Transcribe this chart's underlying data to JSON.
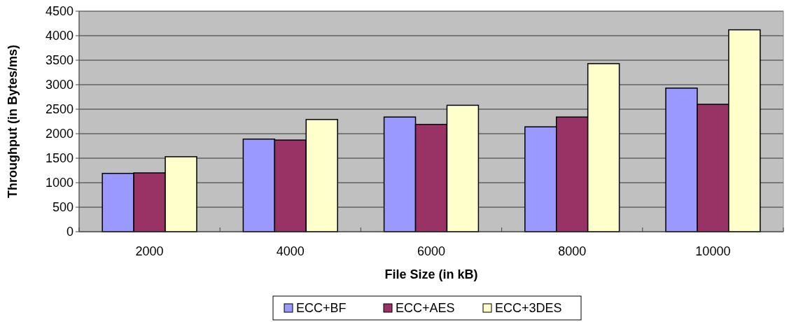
{
  "chart_data": {
    "type": "bar",
    "xlabel": "File Size (in kB)",
    "ylabel": "Throughput (in Bytes/ms)",
    "categories": [
      "2000",
      "4000",
      "6000",
      "8000",
      "10000"
    ],
    "series": [
      {
        "name": "ECC+BF",
        "color": "#9999ff",
        "values": [
          1190,
          1890,
          2340,
          2140,
          2930
        ]
      },
      {
        "name": "ECC+AES",
        "color": "#993366",
        "values": [
          1200,
          1870,
          2190,
          2340,
          2600
        ]
      },
      {
        "name": "ECC+3DES",
        "color": "#ffffcc",
        "values": [
          1530,
          2290,
          2580,
          3430,
          4120
        ]
      }
    ],
    "ylim": [
      0,
      4500
    ],
    "yticks": [
      0,
      500,
      1000,
      1500,
      2000,
      2500,
      3000,
      3500,
      4000,
      4500
    ],
    "grid": "y",
    "legend": "bottom"
  }
}
